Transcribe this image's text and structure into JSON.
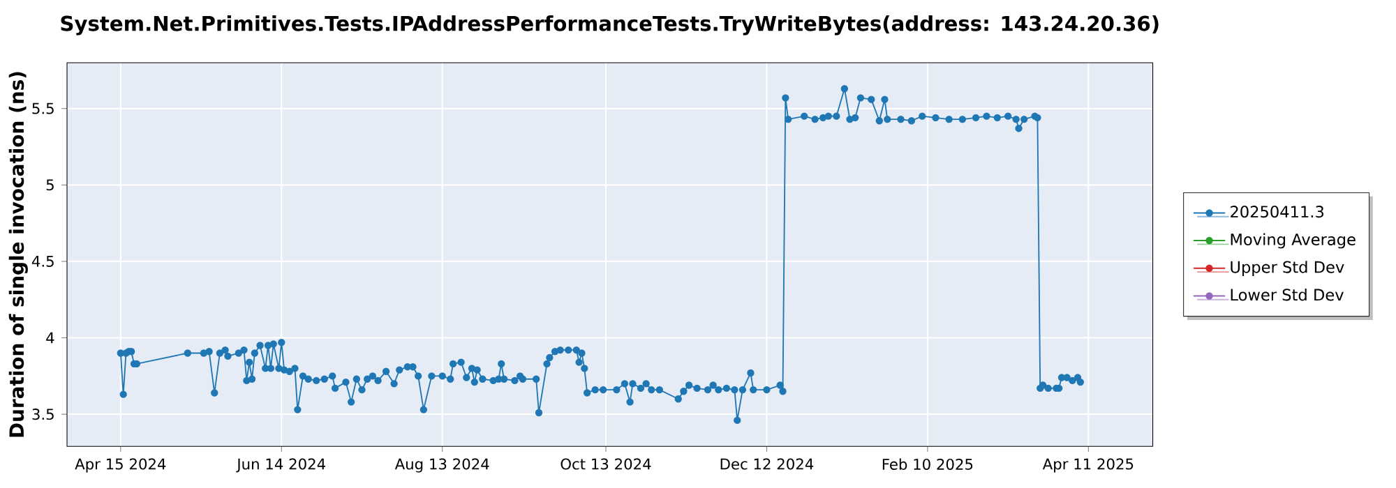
{
  "chart_data": {
    "type": "line",
    "title": "System.Net.Primitives.Tests.IPAddressPerformanceTests.TryWriteBytes(address: 143.24.20.36)",
    "ylabel": "Duration of single invocation (ns)",
    "xlim": [
      "2024-03-26",
      "2025-05-05"
    ],
    "ylim": [
      3.29,
      5.8
    ],
    "xticks": [
      {
        "value": "2024-04-15",
        "label": "Apr 15 2024"
      },
      {
        "value": "2024-06-14",
        "label": "Jun 14 2024"
      },
      {
        "value": "2024-08-13",
        "label": "Aug 13 2024"
      },
      {
        "value": "2024-10-13",
        "label": "Oct 13 2024"
      },
      {
        "value": "2024-12-12",
        "label": "Dec 12 2024"
      },
      {
        "value": "2025-02-10",
        "label": "Feb 10 2025"
      },
      {
        "value": "2025-04-11",
        "label": "Apr 11 2025"
      }
    ],
    "yticks": [
      3.5,
      4,
      4.5,
      5,
      5.5
    ],
    "grid": true,
    "legend": "right",
    "marker": "circle",
    "line_style": "solid",
    "series": [
      {
        "name": "20250411.3",
        "color": "#1f77b4",
        "x": [
          "2024-04-15",
          "2024-04-16",
          "2024-04-17",
          "2024-04-18",
          "2024-04-19",
          "2024-04-20",
          "2024-04-21",
          "2024-05-10",
          "2024-05-16",
          "2024-05-18",
          "2024-05-20",
          "2024-05-22",
          "2024-05-24",
          "2024-05-25",
          "2024-05-29",
          "2024-05-31",
          "2024-06-01",
          "2024-06-02",
          "2024-06-03",
          "2024-06-04",
          "2024-06-06",
          "2024-06-08",
          "2024-06-09",
          "2024-06-10",
          "2024-06-11",
          "2024-06-13",
          "2024-06-14",
          "2024-06-15",
          "2024-06-17",
          "2024-06-19",
          "2024-06-20",
          "2024-06-22",
          "2024-06-24",
          "2024-06-27",
          "2024-06-30",
          "2024-07-03",
          "2024-07-04",
          "2024-07-08",
          "2024-07-10",
          "2024-07-12",
          "2024-07-14",
          "2024-07-16",
          "2024-07-18",
          "2024-07-20",
          "2024-07-23",
          "2024-07-26",
          "2024-07-28",
          "2024-07-31",
          "2024-08-02",
          "2024-08-04",
          "2024-08-06",
          "2024-08-09",
          "2024-08-13",
          "2024-08-16",
          "2024-08-17",
          "2024-08-20",
          "2024-08-22",
          "2024-08-24",
          "2024-08-25",
          "2024-08-26",
          "2024-08-28",
          "2024-09-01",
          "2024-09-03",
          "2024-09-04",
          "2024-09-05",
          "2024-09-09",
          "2024-09-11",
          "2024-09-12",
          "2024-09-17",
          "2024-09-18",
          "2024-09-21",
          "2024-09-22",
          "2024-09-24",
          "2024-09-26",
          "2024-09-29",
          "2024-10-02",
          "2024-10-03",
          "2024-10-04",
          "2024-10-05",
          "2024-10-06",
          "2024-10-09",
          "2024-10-12",
          "2024-10-17",
          "2024-10-20",
          "2024-10-22",
          "2024-10-23",
          "2024-10-26",
          "2024-10-28",
          "2024-10-30",
          "2024-11-02",
          "2024-11-09",
          "2024-11-11",
          "2024-11-13",
          "2024-11-16",
          "2024-11-20",
          "2024-11-22",
          "2024-11-24",
          "2024-11-27",
          "2024-11-30",
          "2024-12-01",
          "2024-12-03",
          "2024-12-06",
          "2024-12-07",
          "2024-12-12",
          "2024-12-17",
          "2024-12-18",
          "2024-12-19",
          "2024-12-20",
          "2024-12-26",
          "2024-12-30",
          "2025-01-02",
          "2025-01-04",
          "2025-01-07",
          "2025-01-10",
          "2025-01-12",
          "2025-01-14",
          "2025-01-16",
          "2025-01-20",
          "2025-01-23",
          "2025-01-25",
          "2025-01-26",
          "2025-01-31",
          "2025-02-04",
          "2025-02-08",
          "2025-02-13",
          "2025-02-18",
          "2025-02-23",
          "2025-02-28",
          "2025-03-04",
          "2025-03-08",
          "2025-03-12",
          "2025-03-15",
          "2025-03-16",
          "2025-03-18",
          "2025-03-22",
          "2025-03-23",
          "2025-03-24",
          "2025-03-25",
          "2025-03-27",
          "2025-03-30",
          "2025-03-31",
          "2025-04-01",
          "2025-04-03",
          "2025-04-05",
          "2025-04-07",
          "2025-04-08"
        ],
        "values": [
          3.9,
          3.63,
          3.9,
          3.91,
          3.91,
          3.83,
          3.83,
          3.9,
          3.9,
          3.91,
          3.64,
          3.9,
          3.92,
          3.88,
          3.9,
          3.92,
          3.72,
          3.84,
          3.73,
          3.9,
          3.95,
          3.8,
          3.95,
          3.8,
          3.96,
          3.8,
          3.97,
          3.79,
          3.78,
          3.8,
          3.53,
          3.75,
          3.73,
          3.72,
          3.73,
          3.75,
          3.67,
          3.71,
          3.58,
          3.73,
          3.66,
          3.73,
          3.75,
          3.72,
          3.78,
          3.7,
          3.79,
          3.81,
          3.81,
          3.75,
          3.53,
          3.75,
          3.75,
          3.73,
          3.83,
          3.84,
          3.74,
          3.8,
          3.71,
          3.79,
          3.73,
          3.72,
          3.73,
          3.83,
          3.73,
          3.72,
          3.75,
          3.73,
          3.73,
          3.51,
          3.83,
          3.87,
          3.91,
          3.92,
          3.92,
          3.92,
          3.84,
          3.9,
          3.8,
          3.64,
          3.66,
          3.66,
          3.66,
          3.7,
          3.58,
          3.7,
          3.67,
          3.7,
          3.66,
          3.66,
          3.6,
          3.65,
          3.69,
          3.67,
          3.66,
          3.69,
          3.66,
          3.67,
          3.66,
          3.46,
          3.66,
          3.77,
          3.66,
          3.66,
          3.69,
          3.65,
          5.57,
          5.43,
          5.45,
          5.43,
          5.44,
          5.45,
          5.45,
          5.63,
          5.43,
          5.44,
          5.57,
          5.56,
          5.42,
          5.56,
          5.43,
          5.43,
          5.42,
          5.45,
          5.44,
          5.43,
          5.43,
          5.44,
          5.45,
          5.44,
          5.45,
          5.43,
          5.37,
          5.43,
          5.45,
          5.44,
          3.67,
          3.69,
          3.67,
          3.67,
          3.67,
          3.74,
          3.74,
          3.72,
          3.74,
          3.71
        ]
      },
      {
        "name": "Moving Average",
        "color": "#2ca02c"
      },
      {
        "name": "Upper Std Dev",
        "color": "#d62728"
      },
      {
        "name": "Lower Std Dev",
        "color": "#9467bd"
      }
    ]
  }
}
